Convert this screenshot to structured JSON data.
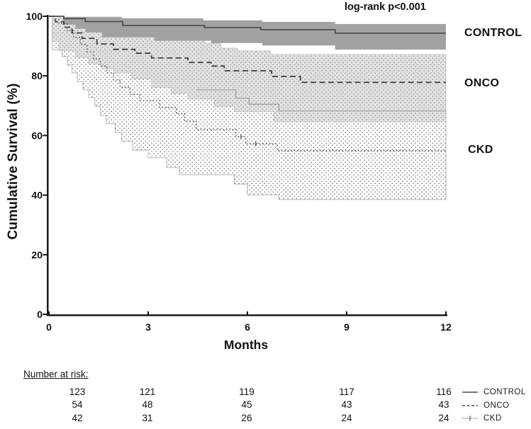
{
  "chart_data": {
    "type": "line",
    "subtype": "kaplan-meier-step",
    "title": "",
    "annotation": "log-rank p<0.001",
    "xlabel": "Months",
    "ylabel": "Cumulative Survival (%)",
    "xlim": [
      0,
      12
    ],
    "ylim": [
      0,
      100
    ],
    "x_ticks": [
      0,
      3,
      6,
      9,
      12
    ],
    "y_ticks": [
      100,
      80,
      60,
      40,
      20,
      0
    ],
    "grid": false,
    "series": [
      {
        "name": "CONTROL",
        "line_style": "solid",
        "line_color": "#4f4f4f",
        "band_style": "solid",
        "band_color": "#a2a2a2",
        "label_y": 94.3,
        "points": [
          [
            0,
            100
          ],
          [
            0.45,
            99.2
          ],
          [
            1.1,
            98.2
          ],
          [
            2.23,
            96.9
          ],
          [
            4.7,
            96.2
          ],
          [
            6.4,
            95.5
          ],
          [
            8.65,
            94.3
          ],
          [
            12,
            94.3
          ]
        ],
        "ci_upper": [
          [
            0.43,
            99.8
          ],
          [
            2.2,
            99.3
          ],
          [
            4.67,
            98.6
          ],
          [
            6.45,
            98.1
          ],
          [
            8.65,
            97.4
          ],
          [
            12,
            97.4
          ]
        ],
        "ci_lower": [
          [
            0.43,
            97.2
          ],
          [
            0.8,
            95.8
          ],
          [
            1.1,
            94.6
          ],
          [
            1.6,
            92.9
          ],
          [
            3.2,
            91.8
          ],
          [
            4.9,
            91.0
          ],
          [
            6.45,
            90.2
          ],
          [
            8.65,
            88.8
          ],
          [
            12,
            88.8
          ]
        ]
      },
      {
        "name": "ONCO",
        "line_style": "dashed",
        "line_color": "#3f3f3f",
        "band_style": "dots-on-gray",
        "band_color": "#e1e1e1",
        "dot_color": "#8f8f8f",
        "label_y": 78,
        "points": [
          [
            0,
            100
          ],
          [
            0.2,
            98.1
          ],
          [
            0.45,
            96.3
          ],
          [
            0.7,
            94.4
          ],
          [
            1.0,
            92.6
          ],
          [
            1.45,
            90.7
          ],
          [
            1.95,
            88.9
          ],
          [
            2.6,
            87.6
          ],
          [
            3.1,
            86.0
          ],
          [
            4.2,
            84.5
          ],
          [
            4.9,
            83.3
          ],
          [
            5.3,
            81.7
          ],
          [
            6.73,
            79.8
          ],
          [
            7.6,
            77.8
          ],
          [
            12,
            77.8
          ]
        ],
        "ci_upper": [
          [
            0.12,
            99.5
          ],
          [
            0.45,
            98.3
          ],
          [
            0.9,
            96.9
          ],
          [
            1.3,
            95.8
          ],
          [
            1.7,
            94.8
          ],
          [
            2.2,
            94.0
          ],
          [
            3.2,
            92.2
          ],
          [
            4.7,
            91.0
          ],
          [
            5.2,
            89.3
          ],
          [
            5.7,
            88.4
          ],
          [
            6.7,
            87.2
          ],
          [
            12,
            87.2
          ]
        ],
        "ci_lower": [
          [
            0.12,
            91.5
          ],
          [
            0.3,
            88.4
          ],
          [
            0.8,
            86.2
          ],
          [
            1.2,
            84.0
          ],
          [
            1.6,
            82.3
          ],
          [
            1.95,
            81.0
          ],
          [
            2.5,
            79.0
          ],
          [
            3.1,
            76.2
          ],
          [
            3.7,
            74.1
          ],
          [
            4.2,
            72.2
          ],
          [
            5.0,
            69.8
          ],
          [
            5.6,
            68.0
          ],
          [
            6.8,
            64.6
          ],
          [
            12,
            64.6
          ]
        ]
      },
      {
        "name": "CKD",
        "line_style": "dotted",
        "line_color": "#555555",
        "band_style": "dots-on-white",
        "band_color": "#ffffff",
        "dot_color": "#757575",
        "label_y": 55,
        "points": [
          [
            0,
            100
          ],
          [
            0.3,
            97.6
          ],
          [
            0.55,
            95.2
          ],
          [
            0.75,
            92.9
          ],
          [
            0.95,
            90.5
          ],
          [
            1.15,
            88.1
          ],
          [
            1.35,
            85.7
          ],
          [
            1.55,
            83.3
          ],
          [
            1.75,
            81.0
          ],
          [
            1.95,
            78.6
          ],
          [
            2.15,
            76.2
          ],
          [
            2.45,
            73.8
          ],
          [
            2.75,
            71.7
          ],
          [
            3.35,
            69.4
          ],
          [
            3.85,
            67.3
          ],
          [
            4.1,
            64.8
          ],
          [
            4.45,
            62.0
          ],
          [
            5.65,
            59.6
          ],
          [
            5.95,
            57.2
          ],
          [
            6.9,
            54.9
          ],
          [
            12,
            54.9
          ]
        ],
        "ci_upper": [
          [
            0.1,
            99.3
          ],
          [
            0.55,
            97.8
          ],
          [
            0.95,
            95.8
          ],
          [
            1.35,
            93.3
          ],
          [
            1.75,
            90.8
          ],
          [
            2.15,
            88.3
          ],
          [
            2.45,
            86.3
          ],
          [
            2.75,
            84.3
          ],
          [
            3.35,
            81.8
          ],
          [
            3.85,
            79.8
          ],
          [
            4.1,
            77.8
          ],
          [
            4.45,
            75.3
          ],
          [
            5.65,
            72.5
          ],
          [
            6.05,
            70.5
          ],
          [
            6.95,
            68.2
          ],
          [
            12,
            68.2
          ]
        ],
        "ci_upper_visible_from": 4.45,
        "ci_lower": [
          [
            0.1,
            88.8
          ],
          [
            0.4,
            86.5
          ],
          [
            0.56,
            83.6
          ],
          [
            0.7,
            81.0
          ],
          [
            0.86,
            78.1
          ],
          [
            1.03,
            75.3
          ],
          [
            1.2,
            72.7
          ],
          [
            1.39,
            69.8
          ],
          [
            1.56,
            66.7
          ],
          [
            1.73,
            63.9
          ],
          [
            2.0,
            61.0
          ],
          [
            2.2,
            58.0
          ],
          [
            2.53,
            55.1
          ],
          [
            3.0,
            52.5
          ],
          [
            3.56,
            49.2
          ],
          [
            3.94,
            46.8
          ],
          [
            5.6,
            43.7
          ],
          [
            6.0,
            40.1
          ],
          [
            6.95,
            38.5
          ],
          [
            12,
            38.5
          ]
        ],
        "censor_marks": [
          [
            5.8,
            59.6
          ],
          [
            6.25,
            57.2
          ]
        ]
      }
    ]
  },
  "risk_table": {
    "title": "Number at risk:",
    "time_points": [
      0,
      3,
      6,
      9,
      12
    ],
    "rows": [
      {
        "group": "CONTROL",
        "counts": [
          "123",
          "121",
          "119",
          "117",
          "116"
        ]
      },
      {
        "group": "ONCO",
        "counts": [
          "54",
          "48",
          "45",
          "43",
          "43"
        ]
      },
      {
        "group": "CKD",
        "counts": [
          "42",
          "31",
          "26",
          "24",
          "24"
        ]
      }
    ]
  },
  "legend": {
    "items": [
      {
        "label": "CONTROL",
        "style": "solid"
      },
      {
        "label": "ONCO",
        "style": "dashed"
      },
      {
        "label": "CKD",
        "style": "dotted-tick"
      }
    ]
  }
}
